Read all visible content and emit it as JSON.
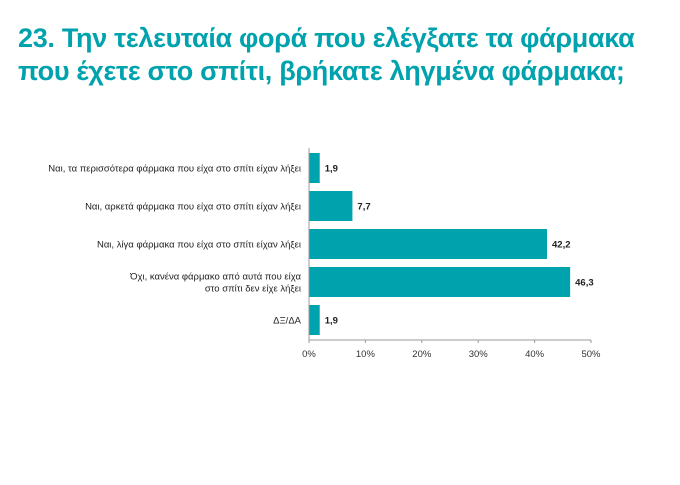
{
  "title_lines": [
    "23. Την τελευταία φορά που ελέγξατε τα φάρμακα",
    "που έχετε στο σπίτι, βρήκατε ληγμένα φάρμακα;"
  ],
  "colors": {
    "bar": "#00a3ad",
    "title": "#00a3ad"
  },
  "chart_data": {
    "type": "bar",
    "orientation": "horizontal",
    "title": "23. Την τελευταία φορά που ελέγξατε τα φάρμακα που έχετε στο σπίτι, βρήκατε ληγμένα φάρμακα;",
    "categories": [
      [
        "Ναι, τα περισσότερα φάρμακα που είχα στο σπίτι είχαν λήξει"
      ],
      [
        "Ναι, αρκετά φάρμακα που είχα στο σπίτι είχαν λήξει"
      ],
      [
        "Ναι, λίγα φάρμακα που είχα στο σπίτι είχαν λήξει"
      ],
      [
        "Όχι, κανένα φάρμακο από αυτά που είχα",
        "στο σπίτι δεν είχε λήξει"
      ],
      [
        "ΔΞ/ΔΑ"
      ]
    ],
    "values": [
      1.9,
      7.7,
      42.2,
      46.3,
      1.9
    ],
    "value_labels": [
      "1,9",
      "7,7",
      "42,2",
      "46,3",
      "1,9"
    ],
    "xlim": [
      0,
      50
    ],
    "xticks": [
      0,
      10,
      20,
      30,
      40,
      50
    ],
    "xtick_labels": [
      "0%",
      "10%",
      "20%",
      "30%",
      "40%",
      "50%"
    ],
    "grid": false,
    "xlabel": "",
    "ylabel": ""
  }
}
